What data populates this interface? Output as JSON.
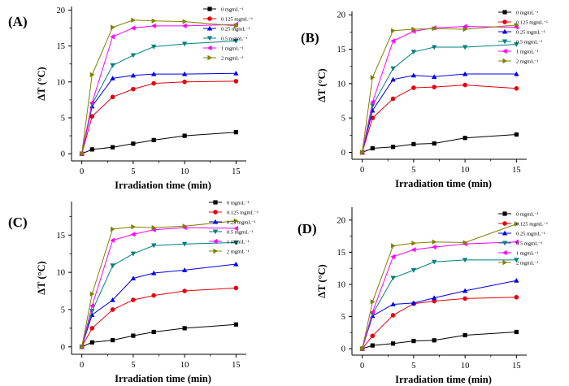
{
  "figure": {
    "series_styles": [
      {
        "color": "#000000",
        "marker": "square"
      },
      {
        "color": "#e8000b",
        "marker": "circle"
      },
      {
        "color": "#0000e8",
        "marker": "triangle-up"
      },
      {
        "color": "#008080",
        "marker": "triangle-down"
      },
      {
        "color": "#ff00ff",
        "marker": "triangle-left"
      },
      {
        "color": "#808000",
        "marker": "triangle-right"
      }
    ]
  },
  "chart_data": [
    {
      "type": "line",
      "panel_label": "(A)",
      "xlabel": "Irradiation time (min)",
      "ylabel": "ΔT (°C)",
      "xlim": [
        -1,
        16
      ],
      "ylim": [
        -1,
        20.5
      ],
      "xticks": [
        "0",
        "5",
        "10",
        "15"
      ],
      "yticks": [
        "0",
        "5",
        "10",
        "15",
        "20"
      ],
      "legend_position": "top-right",
      "x": [
        0,
        1,
        3,
        5,
        7,
        10,
        15
      ],
      "series": [
        {
          "name": "0 mgmL⁻¹",
          "values": [
            0,
            0.6,
            0.9,
            1.4,
            1.9,
            2.5,
            3.0
          ]
        },
        {
          "name": "0.125 mgmL⁻¹",
          "values": [
            0,
            5.2,
            7.9,
            9.0,
            9.8,
            10.0,
            10.1
          ]
        },
        {
          "name": "0.25 mgmL⁻¹",
          "values": [
            0,
            6.6,
            10.5,
            10.9,
            11.1,
            11.1,
            11.2
          ]
        },
        {
          "name": "0.5 mgmL⁻¹",
          "values": [
            0,
            6.9,
            12.3,
            13.7,
            14.9,
            15.3,
            15.7
          ]
        },
        {
          "name": "1 mgmL⁻¹",
          "values": [
            0,
            7.1,
            16.3,
            17.5,
            17.8,
            17.8,
            18.0
          ]
        },
        {
          "name": "2 mgmL⁻¹",
          "values": [
            0,
            11.0,
            17.6,
            18.6,
            18.5,
            18.4,
            17.8
          ]
        }
      ]
    },
    {
      "type": "line",
      "panel_label": "(B)",
      "xlabel": "Irradiation time (min)",
      "ylabel": "ΔT (°C)",
      "xlim": [
        -1,
        16
      ],
      "ylim": [
        -1,
        20.5
      ],
      "xticks": [
        "0",
        "5",
        "10",
        "15"
      ],
      "yticks": [
        "0",
        "5",
        "10",
        "15",
        "20"
      ],
      "legend_position": "top-right",
      "x": [
        0,
        1,
        3,
        5,
        7,
        10,
        15
      ],
      "series": [
        {
          "name": "0 mgmL⁻¹",
          "values": [
            0,
            0.6,
            0.8,
            1.2,
            1.3,
            2.1,
            2.6
          ]
        },
        {
          "name": "0.125 mgmL⁻¹",
          "values": [
            0,
            5.0,
            7.8,
            9.4,
            9.5,
            9.8,
            9.3
          ]
        },
        {
          "name": "0.25 mgmL⁻¹",
          "values": [
            0,
            6.1,
            10.6,
            11.2,
            11.0,
            11.4,
            11.4
          ]
        },
        {
          "name": "0.5 mgmL⁻¹",
          "values": [
            0,
            6.8,
            12.2,
            14.6,
            15.3,
            15.3,
            15.7
          ]
        },
        {
          "name": "1 mgmL⁻¹",
          "values": [
            0,
            7.3,
            16.2,
            17.6,
            18.1,
            18.3,
            18.2
          ]
        },
        {
          "name": "2 mgmL⁻¹",
          "values": [
            0,
            10.9,
            17.7,
            17.9,
            18.0,
            17.9,
            18.5
          ]
        }
      ]
    },
    {
      "type": "line",
      "panel_label": "(C)",
      "xlabel": "Irradiation time (min)",
      "ylabel": "ΔT (°C)",
      "xlim": [
        -1,
        16
      ],
      "ylim": [
        -1,
        19.5
      ],
      "xticks": [
        "0",
        "5",
        "10",
        "15"
      ],
      "yticks": [
        "0",
        "5",
        "10",
        "15"
      ],
      "legend_position": "top-right",
      "x": [
        0,
        1,
        3,
        5,
        7,
        10,
        15
      ],
      "series": [
        {
          "name": "0 mgmL⁻¹",
          "values": [
            0,
            0.6,
            0.9,
            1.5,
            2.0,
            2.5,
            3.0
          ]
        },
        {
          "name": "0.125 mgmL⁻¹",
          "values": [
            0,
            2.5,
            5.0,
            6.3,
            6.9,
            7.5,
            7.9
          ]
        },
        {
          "name": "0.25 mgmL⁻¹",
          "values": [
            0,
            4.3,
            6.3,
            9.2,
            9.9,
            10.3,
            11.1
          ]
        },
        {
          "name": "0.5 mgmL⁻¹",
          "values": [
            0,
            4.8,
            10.9,
            12.5,
            13.6,
            13.8,
            14.0
          ]
        },
        {
          "name": "1 mgmL⁻¹",
          "values": [
            0,
            5.5,
            14.3,
            15.1,
            15.7,
            16.0,
            15.9
          ]
        },
        {
          "name": "2 mgmL⁻¹",
          "values": [
            0,
            7.1,
            15.8,
            16.1,
            16.0,
            16.2,
            16.9
          ]
        }
      ]
    },
    {
      "type": "line",
      "panel_label": "(D)",
      "xlabel": "Irradiation time (min)",
      "ylabel": "ΔT (°C)",
      "xlim": [
        -1,
        16
      ],
      "ylim": [
        -1,
        22
      ],
      "xticks": [
        "0",
        "5",
        "10",
        "15"
      ],
      "yticks": [
        "0",
        "5",
        "10",
        "15",
        "20"
      ],
      "legend_position": "top-right",
      "x": [
        0,
        1,
        3,
        5,
        7,
        10,
        15
      ],
      "series": [
        {
          "name": "0 mgmL⁻¹",
          "values": [
            0,
            0.5,
            0.8,
            1.2,
            1.3,
            2.1,
            2.6
          ]
        },
        {
          "name": "0.125 mgmL⁻¹",
          "values": [
            0,
            2.0,
            5.2,
            7.0,
            7.4,
            7.8,
            8.0
          ]
        },
        {
          "name": "0.25 mgmL⁻¹",
          "values": [
            0,
            5.1,
            6.9,
            7.1,
            7.9,
            9.0,
            10.6
          ]
        },
        {
          "name": "0.5 mgmL⁻¹",
          "values": [
            0,
            5.4,
            11.0,
            12.2,
            13.5,
            13.8,
            13.8
          ]
        },
        {
          "name": "1 mgmL⁻¹",
          "values": [
            0,
            5.7,
            14.3,
            15.4,
            15.8,
            16.3,
            16.6
          ]
        },
        {
          "name": "2 mgmL⁻¹",
          "values": [
            0,
            7.3,
            16.0,
            16.4,
            16.6,
            16.5,
            19.4
          ]
        }
      ]
    }
  ]
}
